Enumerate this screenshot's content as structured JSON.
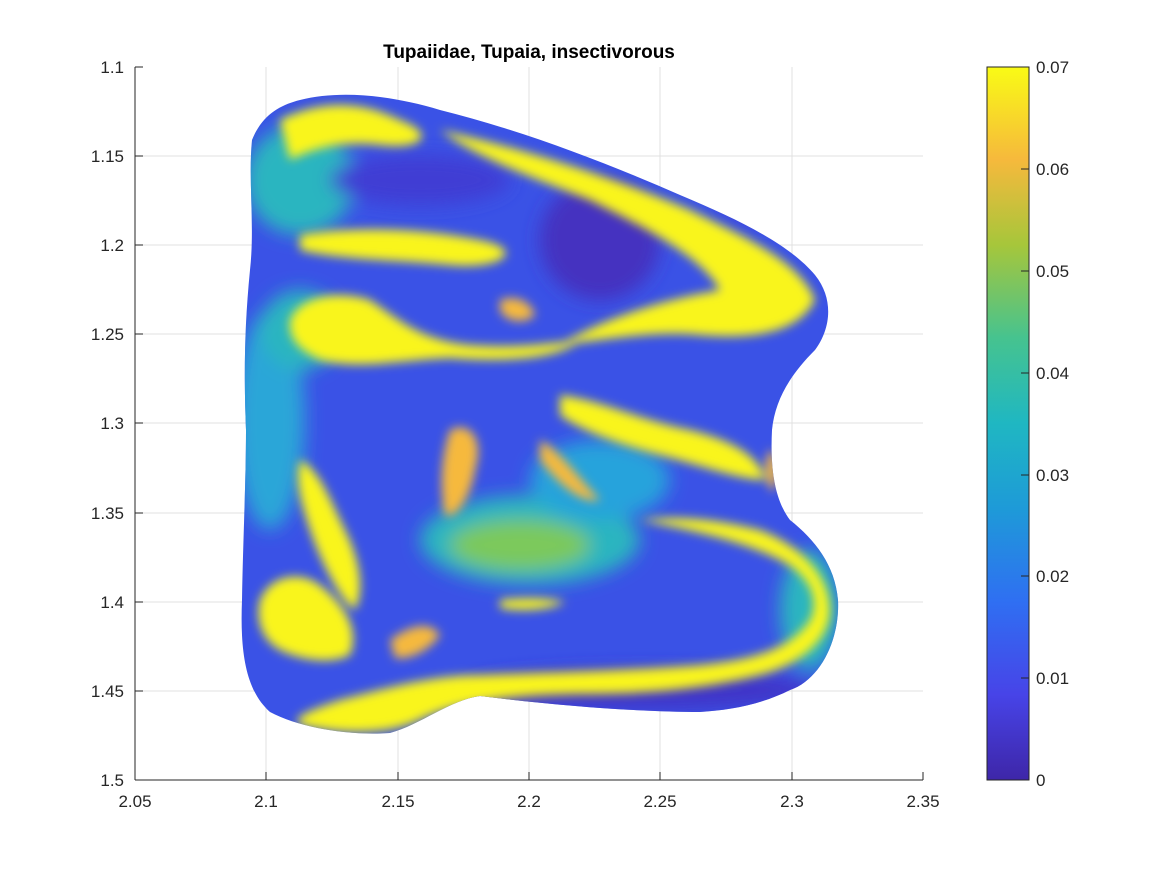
{
  "chart_data": {
    "type": "heatmap",
    "title": "Tupaiidae, Tupaia, insectivorous",
    "xlabel": "",
    "ylabel": "",
    "xlim": [
      2.05,
      2.35
    ],
    "ylim": [
      1.1,
      1.5
    ],
    "y_axis_reversed": true,
    "grid": true,
    "x_ticks": [
      "2.05",
      "2.1",
      "2.15",
      "2.2",
      "2.25",
      "2.3",
      "2.35"
    ],
    "y_ticks": [
      "1.1",
      "1.15",
      "1.2",
      "1.25",
      "1.3",
      "1.35",
      "1.4",
      "1.45",
      "1.5"
    ],
    "colorbar": {
      "colormap": "parula",
      "range": [
        0,
        0.07
      ],
      "ticks": [
        "0",
        "0.01",
        "0.02",
        "0.03",
        "0.04",
        "0.05",
        "0.06",
        "0.07"
      ],
      "position": "right"
    },
    "colors": {
      "low": "#3e26a8",
      "mid_blue": "#2f6ff2",
      "mid_cyan": "#2cb5c0",
      "mid_green": "#80cb58",
      "mid_orange": "#f6b93c",
      "high": "#f9fb15"
    }
  }
}
